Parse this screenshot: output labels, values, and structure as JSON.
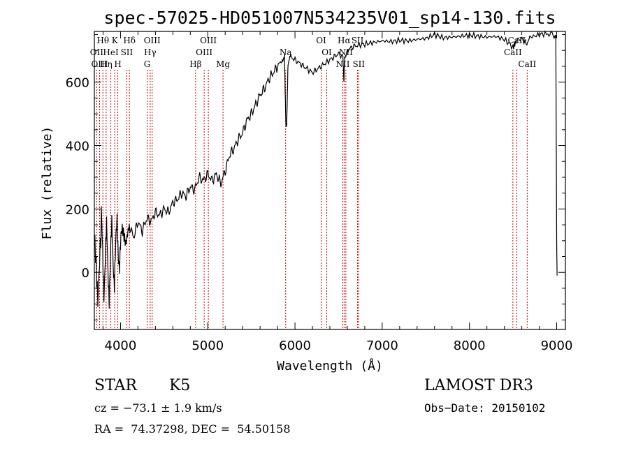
{
  "chart_data": {
    "type": "line",
    "title": "spec-57025-HD051007N534235V01_sp14-130.fits",
    "xlabel": "Wavelength (Å)",
    "ylabel": "Flux (relative)",
    "xlim": [
      3700,
      9100
    ],
    "ylim": [
      -180,
      760
    ],
    "xticks": [
      4000,
      5000,
      6000,
      7000,
      8000,
      9000
    ],
    "yticks": [
      0,
      200,
      400,
      600
    ],
    "line_color": "#000000",
    "marker_color": "#cc0000",
    "spectrum": [
      [
        3700,
        130
      ],
      [
        3740,
        -90
      ],
      [
        3780,
        160
      ],
      [
        3810,
        -40
      ],
      [
        3840,
        120
      ],
      [
        3870,
        -60
      ],
      [
        3900,
        130
      ],
      [
        3930,
        -20
      ],
      [
        3960,
        150
      ],
      [
        3990,
        20
      ],
      [
        4020,
        140
      ],
      [
        4060,
        90
      ],
      [
        4100,
        150
      ],
      [
        4150,
        110
      ],
      [
        4200,
        160
      ],
      [
        4250,
        130
      ],
      [
        4300,
        170
      ],
      [
        4350,
        160
      ],
      [
        4400,
        190
      ],
      [
        4450,
        180
      ],
      [
        4500,
        200
      ],
      [
        4550,
        190
      ],
      [
        4600,
        220
      ],
      [
        4650,
        230
      ],
      [
        4700,
        250
      ],
      [
        4750,
        240
      ],
      [
        4800,
        270
      ],
      [
        4850,
        260
      ],
      [
        4900,
        300
      ],
      [
        4950,
        290
      ],
      [
        5000,
        310
      ],
      [
        5050,
        290
      ],
      [
        5100,
        310
      ],
      [
        5150,
        280
      ],
      [
        5200,
        320
      ],
      [
        5250,
        370
      ],
      [
        5300,
        390
      ],
      [
        5350,
        420
      ],
      [
        5400,
        440
      ],
      [
        5450,
        480
      ],
      [
        5500,
        500
      ],
      [
        5550,
        530
      ],
      [
        5600,
        560
      ],
      [
        5650,
        580
      ],
      [
        5700,
        610
      ],
      [
        5750,
        630
      ],
      [
        5800,
        650
      ],
      [
        5850,
        670
      ],
      [
        5880,
        680
      ],
      [
        5895,
        470
      ],
      [
        5905,
        460
      ],
      [
        5920,
        660
      ],
      [
        5950,
        680
      ],
      [
        6000,
        670
      ],
      [
        6050,
        660
      ],
      [
        6100,
        650
      ],
      [
        6150,
        640
      ],
      [
        6200,
        630
      ],
      [
        6250,
        640
      ],
      [
        6300,
        650
      ],
      [
        6350,
        660
      ],
      [
        6400,
        670
      ],
      [
        6450,
        680
      ],
      [
        6500,
        690
      ],
      [
        6550,
        680
      ],
      [
        6560,
        600
      ],
      [
        6570,
        680
      ],
      [
        6600,
        700
      ],
      [
        6650,
        710
      ],
      [
        6700,
        715
      ],
      [
        6800,
        720
      ],
      [
        6900,
        725
      ],
      [
        7000,
        730
      ],
      [
        7100,
        728
      ],
      [
        7200,
        732
      ],
      [
        7300,
        730
      ],
      [
        7400,
        735
      ],
      [
        7500,
        738
      ],
      [
        7600,
        750
      ],
      [
        7700,
        740
      ],
      [
        7800,
        742
      ],
      [
        7900,
        745
      ],
      [
        8000,
        748
      ],
      [
        8100,
        745
      ],
      [
        8200,
        742
      ],
      [
        8300,
        744
      ],
      [
        8400,
        735
      ],
      [
        8500,
        710
      ],
      [
        8540,
        730
      ],
      [
        8600,
        740
      ],
      [
        8650,
        720
      ],
      [
        8700,
        742
      ],
      [
        8800,
        750
      ],
      [
        8900,
        755
      ],
      [
        8960,
        750
      ],
      [
        8990,
        740
      ],
      [
        9000,
        100
      ],
      [
        9005,
        -10
      ]
    ],
    "lines": [
      {
        "label": "OII",
        "x": 3727,
        "row": 2
      },
      {
        "label": "Hθ",
        "x": 3798,
        "row": 1
      },
      {
        "label": "OIII",
        "x": 3760,
        "row": 3
      },
      {
        "label": "Hη",
        "x": 3835,
        "row": 3
      },
      {
        "label": "HeI",
        "x": 3889,
        "row": 2
      },
      {
        "label": "K",
        "x": 3934,
        "row": 1
      },
      {
        "label": "H",
        "x": 3969,
        "row": 3
      },
      {
        "label": "SII",
        "x": 4072,
        "row": 2
      },
      {
        "label": "Hδ",
        "x": 4102,
        "row": 1
      },
      {
        "label": "OIII",
        "x": 4363,
        "row": 1
      },
      {
        "label": "Hγ",
        "x": 4340,
        "row": 2
      },
      {
        "label": "G",
        "x": 4305,
        "row": 3
      },
      {
        "label": "Hβ",
        "x": 4861,
        "row": 3
      },
      {
        "label": "OIII",
        "x": 5007,
        "row": 1
      },
      {
        "label": "OIII",
        "x": 4959,
        "row": 2
      },
      {
        "label": "Mg",
        "x": 5175,
        "row": 3
      },
      {
        "label": "Na",
        "x": 5893,
        "row": 2
      },
      {
        "label": "OI",
        "x": 6300,
        "row": 1
      },
      {
        "label": "OI",
        "x": 6364,
        "row": 2
      },
      {
        "label": "Hα",
        "x": 6563,
        "row": 1
      },
      {
        "label": "NII",
        "x": 6548,
        "row": 3
      },
      {
        "label": "NII",
        "x": 6583,
        "row": 2
      },
      {
        "label": "SII",
        "x": 6717,
        "row": 1
      },
      {
        "label": "SII",
        "x": 6731,
        "row": 3
      },
      {
        "label": "CaII",
        "x": 8498,
        "row": 2
      },
      {
        "label": "CaII",
        "x": 8542,
        "row": 1
      },
      {
        "label": "CaII",
        "x": 8662,
        "row": 3
      }
    ]
  },
  "info": {
    "obj_type": "STAR",
    "subclass": "K5",
    "survey": "LAMOST DR3",
    "cz": "cz = −73.1 ± 1.9 km/s",
    "obs_date": "Obs−Date: 20150102",
    "radec": "RA =  74.37298, DEC =  54.50158"
  }
}
